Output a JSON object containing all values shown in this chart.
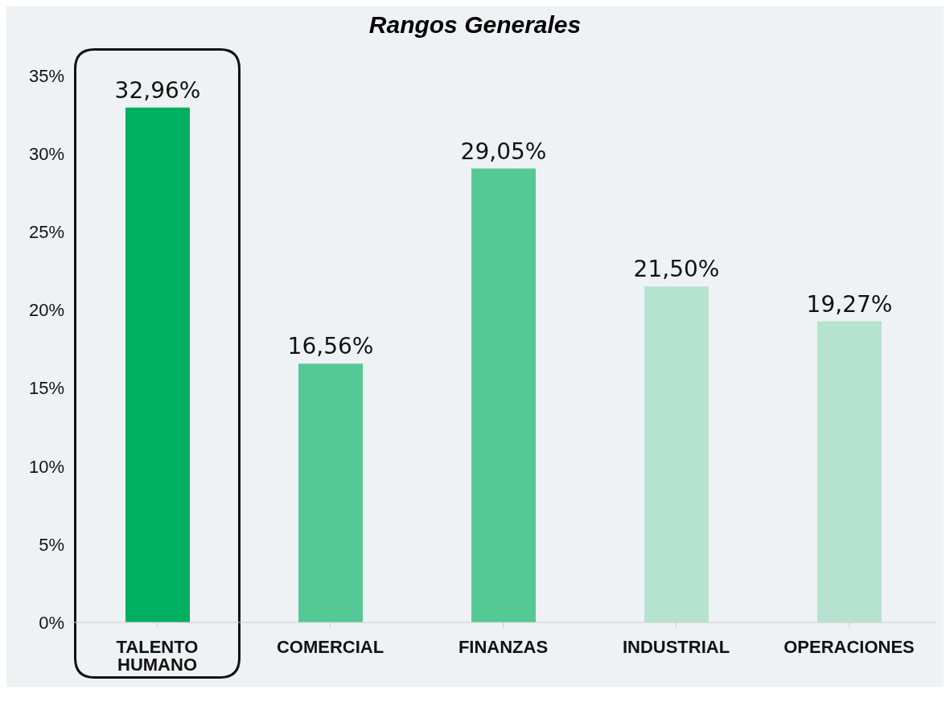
{
  "chart_data": {
    "type": "bar",
    "title": "Rangos Generales",
    "categories": [
      "TALENTO HUMANO",
      "COMERCIAL",
      "FINANZAS",
      "INDUSTRIAL",
      "OPERACIONES"
    ],
    "values": [
      32.96,
      16.56,
      29.05,
      21.5,
      19.27
    ],
    "colors": [
      "#00b060",
      "#55c995",
      "#55c995",
      "#b5e3d0",
      "#b5e3d0"
    ],
    "value_labels": [
      "32,96%",
      "16,56%",
      "29,05%",
      "21,50%",
      "19,27%"
    ],
    "ylim": [
      0,
      35
    ],
    "yticks": [
      {
        "value": 0,
        "label": "0%"
      },
      {
        "value": 5,
        "label": "5%"
      },
      {
        "value": 10,
        "label": "10%"
      },
      {
        "value": 15,
        "label": "15%"
      },
      {
        "value": 20,
        "label": "20%"
      },
      {
        "value": 25,
        "label": "25%"
      },
      {
        "value": 30,
        "label": "30%"
      },
      {
        "value": 35,
        "label": "35%"
      }
    ],
    "grid": false,
    "legend": false
  }
}
